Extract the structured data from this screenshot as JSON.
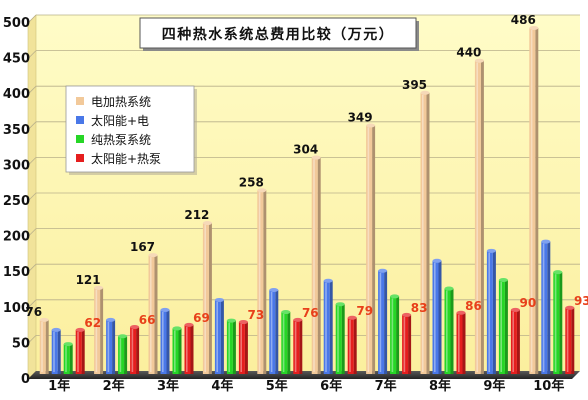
{
  "chart_data": {
    "type": "bar",
    "title": "四种热水系统总费用比较（万元）",
    "xlabel": "",
    "ylabel": "",
    "categories": [
      "1年",
      "2年",
      "3年",
      "4年",
      "5年",
      "6年",
      "7年",
      "8年",
      "9年",
      "10年"
    ],
    "ylim": [
      0,
      500
    ],
    "yticks": [
      0,
      50,
      100,
      150,
      200,
      250,
      300,
      350,
      400,
      450,
      500
    ],
    "grid": true,
    "legend_position": "upper-left",
    "series": [
      {
        "name": "电加热系统",
        "color": "#F2C99A",
        "values": [
          76,
          121,
          167,
          212,
          258,
          304,
          349,
          395,
          440,
          486
        ],
        "labels_shown": true,
        "label_color": "#111111"
      },
      {
        "name": "太阳能+电",
        "color": "#4A78E8",
        "values": [
          62,
          76,
          90,
          104,
          118,
          131,
          145,
          159,
          173,
          186
        ],
        "labels_shown": false
      },
      {
        "name": "纯热泵系统",
        "color": "#26D626",
        "values": [
          42,
          53,
          64,
          75,
          87,
          98,
          109,
          120,
          132,
          143
        ],
        "labels_shown": false
      },
      {
        "name": "太阳能+热泵",
        "color": "#E51E1E",
        "values": [
          62,
          66,
          69,
          73,
          76,
          79,
          83,
          86,
          90,
          93
        ],
        "labels_shown": true,
        "label_color": "#E8401A"
      }
    ]
  }
}
